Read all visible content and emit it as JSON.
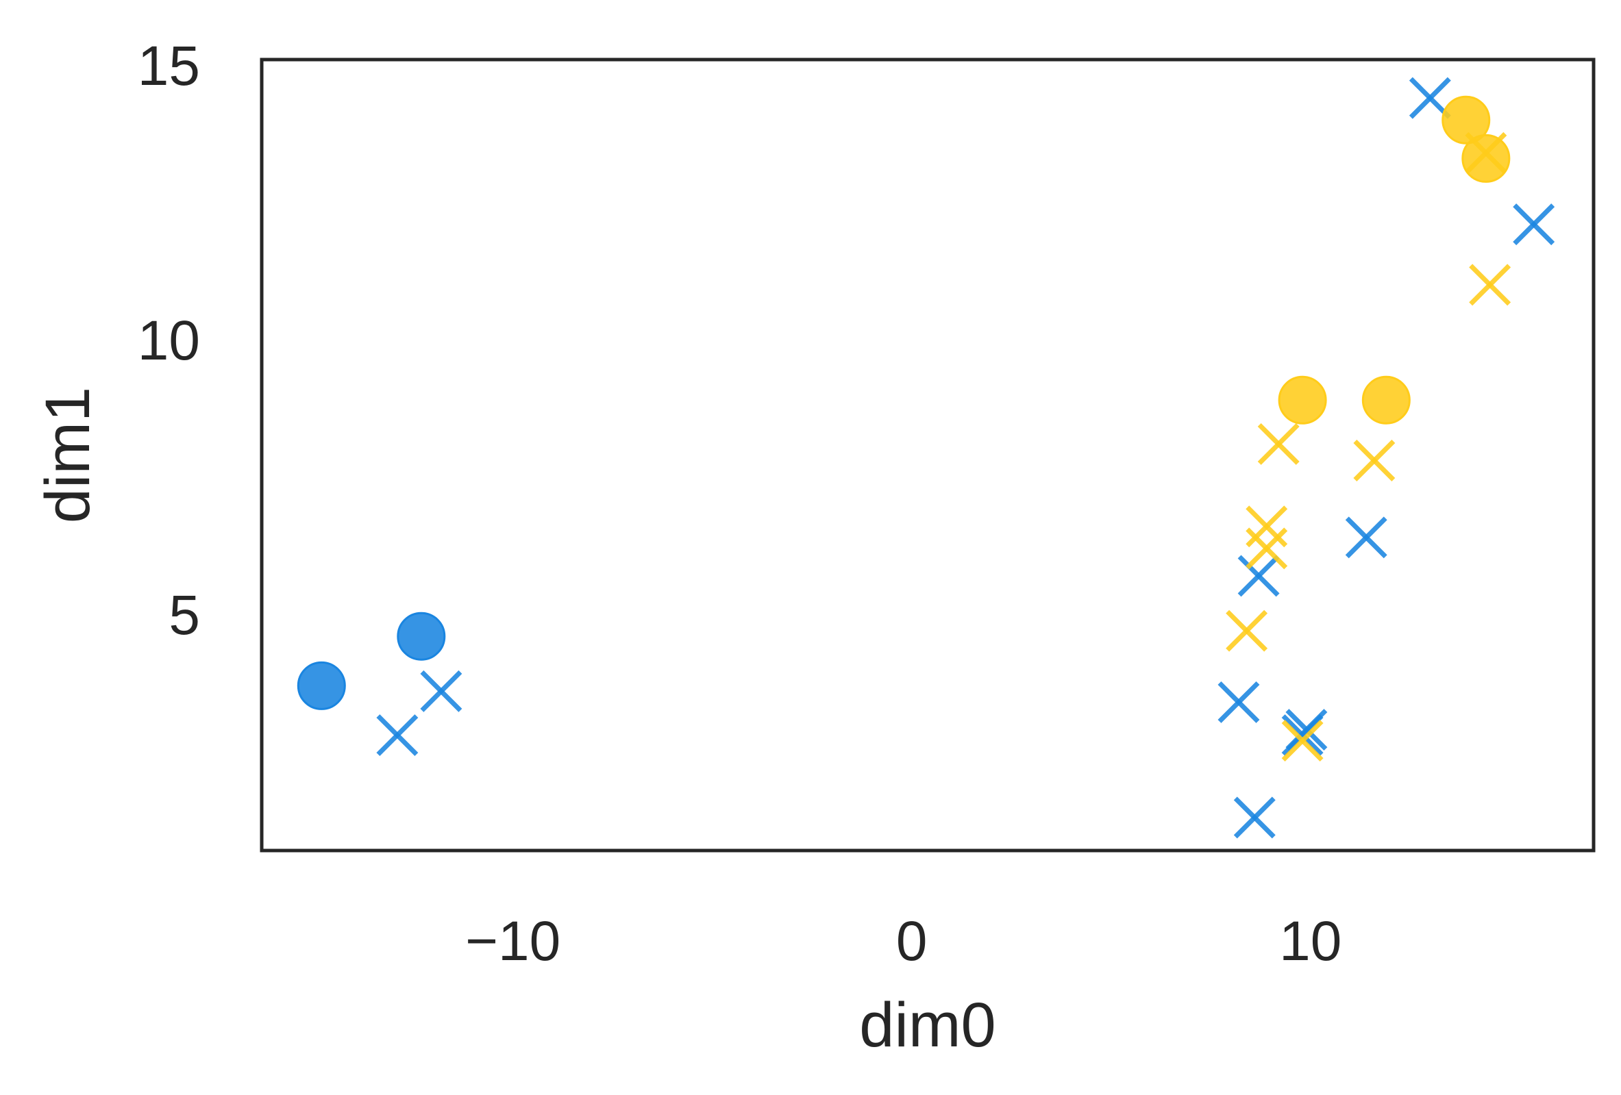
{
  "chart_data": {
    "type": "scatter",
    "title": "",
    "xlabel": "dim0",
    "ylabel": "dim1",
    "xlim": [
      -16.3,
      17.1
    ],
    "ylim": [
      0.7,
      15.1
    ],
    "x_ticks": [
      -10,
      0,
      10
    ],
    "y_ticks": [
      5,
      10,
      15
    ],
    "x_tick_labels": [
      "−10",
      "0",
      "10"
    ],
    "y_tick_labels": [
      "5",
      "10",
      "15"
    ],
    "grid": false,
    "legend": "none",
    "colors": {
      "blue": "#1a85e0",
      "yellow": "#ffcc1a",
      "frame": "#262626"
    },
    "series": [
      {
        "color": "blue",
        "marker": "circle",
        "points": [
          [
            -14.8,
            3.7
          ],
          [
            -12.3,
            4.6
          ]
        ]
      },
      {
        "color": "blue",
        "marker": "x",
        "points": [
          [
            -12.9,
            2.8
          ],
          [
            -11.8,
            3.6
          ],
          [
            8.2,
            3.4
          ],
          [
            8.6,
            1.3
          ],
          [
            8.7,
            5.7
          ],
          [
            9.8,
            2.8
          ],
          [
            9.9,
            2.9
          ],
          [
            11.4,
            6.4
          ],
          [
            13.0,
            14.4
          ],
          [
            15.6,
            12.1
          ]
        ]
      },
      {
        "color": "yellow",
        "marker": "circle",
        "points": [
          [
            9.8,
            8.9
          ],
          [
            11.9,
            8.9
          ],
          [
            13.9,
            14.0
          ],
          [
            14.4,
            13.3
          ]
        ]
      },
      {
        "color": "yellow",
        "marker": "x",
        "points": [
          [
            8.4,
            4.7
          ],
          [
            8.9,
            6.2
          ],
          [
            8.9,
            6.6
          ],
          [
            9.2,
            8.1
          ],
          [
            9.8,
            2.7
          ],
          [
            11.6,
            7.8
          ],
          [
            14.4,
            13.4
          ],
          [
            14.5,
            11.0
          ]
        ]
      }
    ]
  }
}
